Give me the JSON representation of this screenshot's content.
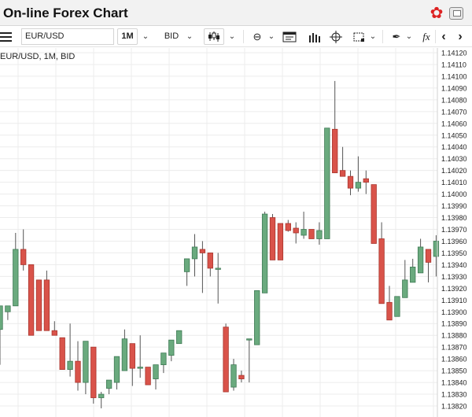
{
  "window": {
    "title": "On-line Forex Chart"
  },
  "toolbar": {
    "symbol": "EUR/USD",
    "interval": "1M",
    "price_type": "BID",
    "indicator_label": "fx"
  },
  "legend": {
    "text": "EUR/USD, 1M, BID"
  },
  "colors": {
    "up": "#6aaa7e",
    "down": "#d9534a",
    "wick": "#555555",
    "grid": "#ececec",
    "accent": "#d9263a"
  },
  "icons": [
    "menu-icon",
    "chevron-down-icon",
    "candlestick-icon",
    "compare-icon",
    "template-icon",
    "bars-icon",
    "crosshair-icon",
    "crop-icon",
    "draw-icon",
    "fx-icon",
    "arrow-left-icon",
    "arrow-right-icon",
    "settings-icon",
    "popout-icon"
  ],
  "chart_data": {
    "type": "candlestick",
    "series_name": "EUR/USD",
    "ylim": [
      1.1382,
      1.1414
    ],
    "yticks": [
      "1.14120",
      "1.14110",
      "1.14100",
      "1.14090",
      "1.14080",
      "1.14070",
      "1.14060",
      "1.14050",
      "1.14040",
      "1.14030",
      "1.14020",
      "1.14010",
      "1.14000",
      "1.13990",
      "1.13980",
      "1.13970",
      "1.13960",
      "1.13950",
      "1.13940",
      "1.13930",
      "1.13920",
      "1.13910",
      "1.13900",
      "1.13890",
      "1.13880",
      "1.13870",
      "1.13860",
      "1.13850",
      "1.13840",
      "1.13830",
      "1.13820"
    ],
    "candles": [
      {
        "o": 1.13885,
        "h": 1.13905,
        "l": 1.13855,
        "c": 1.13905
      },
      {
        "o": 1.139,
        "h": 1.13905,
        "l": 1.13893,
        "c": 1.13905
      },
      {
        "o": 1.13905,
        "h": 1.13967,
        "l": 1.13905,
        "c": 1.13953
      },
      {
        "o": 1.13953,
        "h": 1.1397,
        "l": 1.13935,
        "c": 1.1394
      },
      {
        "o": 1.1394,
        "h": 1.1394,
        "l": 1.1388,
        "c": 1.1388
      },
      {
        "o": 1.13927,
        "h": 1.13927,
        "l": 1.13884,
        "c": 1.13884
      },
      {
        "o": 1.13927,
        "h": 1.13935,
        "l": 1.13884,
        "c": 1.13884
      },
      {
        "o": 1.13884,
        "h": 1.13892,
        "l": 1.1388,
        "c": 1.1388
      },
      {
        "o": 1.13878,
        "h": 1.13878,
        "l": 1.13851,
        "c": 1.13851
      },
      {
        "o": 1.13851,
        "h": 1.1389,
        "l": 1.13845,
        "c": 1.13858
      },
      {
        "o": 1.13858,
        "h": 1.13875,
        "l": 1.13833,
        "c": 1.1384
      },
      {
        "o": 1.1384,
        "h": 1.13875,
        "l": 1.1383,
        "c": 1.13875
      },
      {
        "o": 1.1387,
        "h": 1.1387,
        "l": 1.13822,
        "c": 1.13827
      },
      {
        "o": 1.13827,
        "h": 1.13832,
        "l": 1.13818,
        "c": 1.1383
      },
      {
        "o": 1.13835,
        "h": 1.13842,
        "l": 1.1383,
        "c": 1.13842
      },
      {
        "o": 1.1384,
        "h": 1.13862,
        "l": 1.13834,
        "c": 1.13862
      },
      {
        "o": 1.1385,
        "h": 1.13885,
        "l": 1.1385,
        "c": 1.13877
      },
      {
        "o": 1.13873,
        "h": 1.13873,
        "l": 1.13837,
        "c": 1.13852
      },
      {
        "o": 1.13853,
        "h": 1.1388,
        "l": 1.13844,
        "c": 1.13853
      },
      {
        "o": 1.13853,
        "h": 1.13853,
        "l": 1.13838,
        "c": 1.13838
      },
      {
        "o": 1.13843,
        "h": 1.13855,
        "l": 1.13834,
        "c": 1.13855
      },
      {
        "o": 1.13855,
        "h": 1.13865,
        "l": 1.13848,
        "c": 1.13865
      },
      {
        "o": 1.13863,
        "h": 1.13876,
        "l": 1.13858,
        "c": 1.13876
      },
      {
        "o": 1.13873,
        "h": 1.13884,
        "l": 1.13873,
        "c": 1.13884
      },
      {
        "o": 1.13934,
        "h": 1.13945,
        "l": 1.13922,
        "c": 1.13945
      },
      {
        "o": 1.13945,
        "h": 1.13966,
        "l": 1.1393,
        "c": 1.13955
      },
      {
        "o": 1.13953,
        "h": 1.1396,
        "l": 1.13916,
        "c": 1.1395
      },
      {
        "o": 1.1395,
        "h": 1.1395,
        "l": 1.1393,
        "c": 1.13937
      },
      {
        "o": 1.13937,
        "h": 1.1395,
        "l": 1.13907,
        "c": 1.13937
      },
      {
        "o": 1.13887,
        "h": 1.1389,
        "l": 1.13832,
        "c": 1.13832
      },
      {
        "o": 1.13836,
        "h": 1.1386,
        "l": 1.13833,
        "c": 1.13855
      },
      {
        "o": 1.13846,
        "h": 1.1385,
        "l": 1.1384,
        "c": 1.13843
      },
      {
        "o": 1.13877,
        "h": 1.13877,
        "l": 1.1384,
        "c": 1.13877
      },
      {
        "o": 1.13872,
        "h": 1.13918,
        "l": 1.13872,
        "c": 1.13918
      },
      {
        "o": 1.13916,
        "h": 1.13985,
        "l": 1.13916,
        "c": 1.13983
      },
      {
        "o": 1.1398,
        "h": 1.13983,
        "l": 1.13944,
        "c": 1.13944
      },
      {
        "o": 1.13975,
        "h": 1.13975,
        "l": 1.13944,
        "c": 1.13944
      },
      {
        "o": 1.13975,
        "h": 1.13978,
        "l": 1.13968,
        "c": 1.13969
      },
      {
        "o": 1.13971,
        "h": 1.13976,
        "l": 1.13958,
        "c": 1.13967
      },
      {
        "o": 1.13965,
        "h": 1.13985,
        "l": 1.13962,
        "c": 1.1397
      },
      {
        "o": 1.1397,
        "h": 1.1397,
        "l": 1.13962,
        "c": 1.13962
      },
      {
        "o": 1.13962,
        "h": 1.13976,
        "l": 1.13957,
        "c": 1.13969
      },
      {
        "o": 1.13962,
        "h": 1.14056,
        "l": 1.13962,
        "c": 1.14056
      },
      {
        "o": 1.14055,
        "h": 1.14096,
        "l": 1.14018,
        "c": 1.14018
      },
      {
        "o": 1.1402,
        "h": 1.1404,
        "l": 1.14015,
        "c": 1.14015
      },
      {
        "o": 1.14015,
        "h": 1.1402,
        "l": 1.13999,
        "c": 1.14005
      },
      {
        "o": 1.14005,
        "h": 1.14032,
        "l": 1.14002,
        "c": 1.1401
      },
      {
        "o": 1.14013,
        "h": 1.1402,
        "l": 1.14,
        "c": 1.1401
      },
      {
        "o": 1.14008,
        "h": 1.14008,
        "l": 1.13958,
        "c": 1.13958
      },
      {
        "o": 1.13962,
        "h": 1.13976,
        "l": 1.13907,
        "c": 1.13907
      },
      {
        "o": 1.13908,
        "h": 1.13922,
        "l": 1.13893,
        "c": 1.13893
      },
      {
        "o": 1.13896,
        "h": 1.13913,
        "l": 1.13896,
        "c": 1.13913
      },
      {
        "o": 1.13912,
        "h": 1.13944,
        "l": 1.13912,
        "c": 1.13927
      },
      {
        "o": 1.13925,
        "h": 1.13945,
        "l": 1.13925,
        "c": 1.13938
      },
      {
        "o": 1.13933,
        "h": 1.13962,
        "l": 1.13933,
        "c": 1.13955
      },
      {
        "o": 1.13953,
        "h": 1.13953,
        "l": 1.13925,
        "c": 1.13942
      },
      {
        "o": 1.13947,
        "h": 1.13965,
        "l": 1.1393,
        "c": 1.1396
      }
    ]
  }
}
